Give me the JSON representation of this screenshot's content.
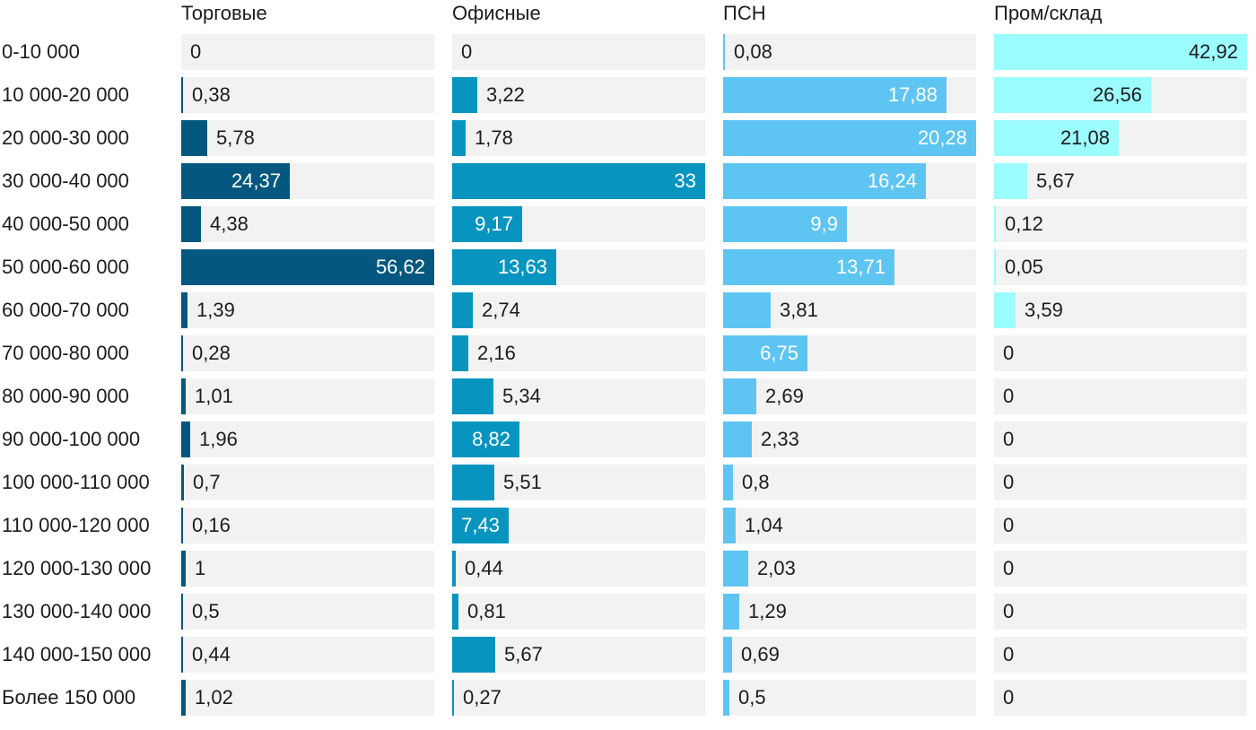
{
  "chart_data": {
    "type": "bar",
    "orientation": "horizontal",
    "layout": "small-multiples",
    "categories": [
      "0-10 000",
      "10 000-20 000",
      "20 000-30 000",
      "30 000-40 000",
      "40 000-50 000",
      "50 000-60 000",
      "60 000-70 000",
      "70 000-80 000",
      "80 000-90 000",
      "90 000-100 000",
      "100 000-110 000",
      "110 000-120 000",
      "120 000-130 000",
      "130 000-140 000",
      "140 000-150 000",
      "Более 150 000"
    ],
    "series": [
      {
        "name": "Торговые",
        "color": "#04587f",
        "values": [
          0,
          0.38,
          5.78,
          24.37,
          4.38,
          56.62,
          1.39,
          0.28,
          1.01,
          1.96,
          0.7,
          0.16,
          1,
          0.5,
          0.44,
          1.02
        ],
        "labels": [
          "0",
          "0,38",
          "5,78",
          "24,37",
          "4,38",
          "56,62",
          "1,39",
          "0,28",
          "1,01",
          "1,96",
          "0,7",
          "0,16",
          "1",
          "0,5",
          "0,44",
          "1,02"
        ]
      },
      {
        "name": "Офисные",
        "color": "#0795c0",
        "values": [
          0,
          3.22,
          1.78,
          33,
          9.17,
          13.63,
          2.74,
          2.16,
          5.34,
          8.82,
          5.51,
          7.43,
          0.44,
          0.81,
          5.67,
          0.27
        ],
        "labels": [
          "0",
          "3,22",
          "1,78",
          "33",
          "9,17",
          "13,63",
          "2,74",
          "2,16",
          "5,34",
          "8,82",
          "5,51",
          "7,43",
          "0,44",
          "0,81",
          "5,67",
          "0,27"
        ]
      },
      {
        "name": "ПСН",
        "color": "#5ec5f3",
        "values": [
          0.08,
          17.88,
          20.28,
          16.24,
          9.9,
          13.71,
          3.81,
          6.75,
          2.69,
          2.33,
          0.8,
          1.04,
          2.03,
          1.29,
          0.69,
          0.5
        ],
        "labels": [
          "0,08",
          "17,88",
          "20,28",
          "16,24",
          "9,9",
          "13,71",
          "3,81",
          "6,75",
          "2,69",
          "2,33",
          "0,8",
          "1,04",
          "2,03",
          "1,29",
          "0,69",
          "0,5"
        ]
      },
      {
        "name": "Пром/склад",
        "color": "#9bfdfd",
        "values": [
          42.92,
          26.56,
          21.08,
          5.67,
          0.12,
          0.05,
          3.59,
          0,
          0,
          0,
          0,
          0,
          0,
          0,
          0,
          0
        ],
        "labels": [
          "42,92",
          "26,56",
          "21,08",
          "5,67",
          "0,12",
          "0,05",
          "3,59",
          "0",
          "0",
          "0",
          "0",
          "0",
          "0",
          "0",
          "0",
          "0"
        ]
      }
    ],
    "title": "",
    "xlabel": "",
    "ylabel": "",
    "grid": false,
    "legend": "column headers"
  }
}
